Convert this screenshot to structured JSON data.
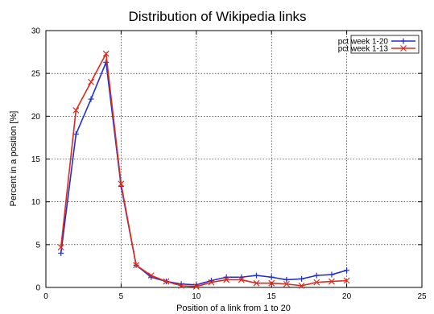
{
  "chart_data": {
    "type": "line",
    "title": "Distribution of Wikipedia links",
    "xlabel": "Position of a link from 1 to 20",
    "ylabel": "Percent in a position [%]",
    "xlim": [
      0,
      25
    ],
    "ylim": [
      0,
      30
    ],
    "xticks": [
      0,
      5,
      10,
      15,
      20,
      25
    ],
    "yticks": [
      0,
      5,
      10,
      15,
      20,
      25,
      30
    ],
    "grid": true,
    "legend_position": "top-right",
    "x": [
      1,
      2,
      3,
      4,
      5,
      6,
      7,
      8,
      9,
      10,
      11,
      12,
      13,
      14,
      15,
      16,
      17,
      18,
      19,
      20
    ],
    "series": [
      {
        "name": "pct week 1-20",
        "color": "#1f2fd6",
        "marker": "plus",
        "values": [
          4.0,
          17.9,
          22.0,
          26.3,
          11.8,
          2.6,
          1.2,
          0.7,
          0.4,
          0.3,
          0.8,
          1.2,
          1.2,
          1.4,
          1.2,
          0.9,
          1.0,
          1.4,
          1.5,
          2.0
        ]
      },
      {
        "name": "pct week 1-13",
        "color": "#e0291b",
        "marker": "cross",
        "values": [
          4.7,
          20.7,
          24.0,
          27.3,
          12.1,
          2.6,
          1.4,
          0.7,
          0.2,
          0.1,
          0.6,
          0.9,
          0.9,
          0.5,
          0.5,
          0.4,
          0.2,
          0.6,
          0.7,
          0.8
        ]
      }
    ]
  }
}
